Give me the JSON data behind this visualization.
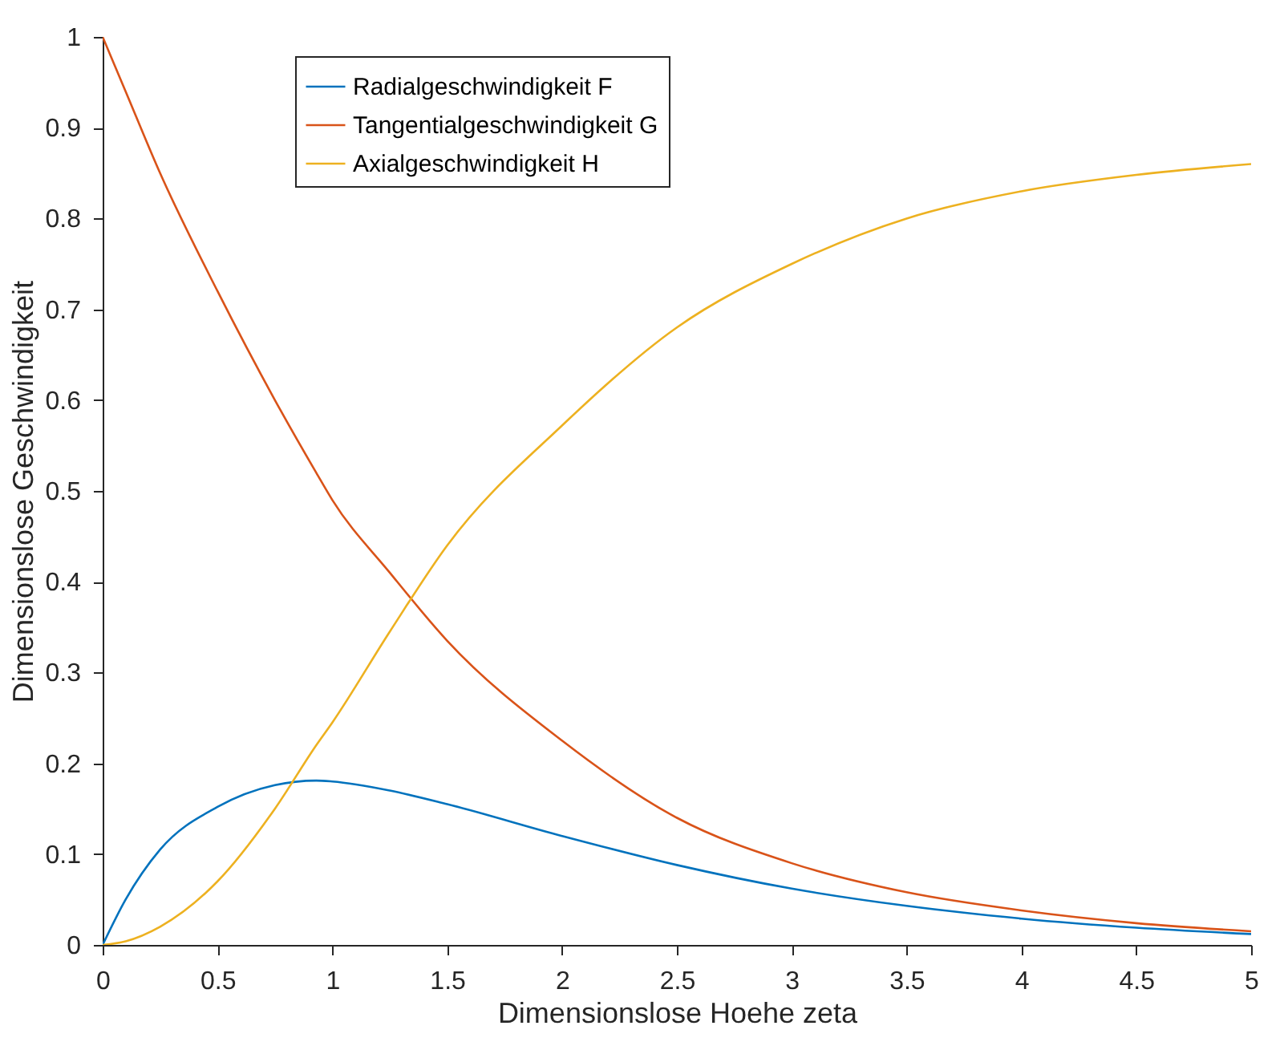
{
  "chart_data": {
    "type": "line",
    "xlabel": "Dimensionslose Hoehe zeta",
    "ylabel": "Dimensionslose Geschwindigkeit",
    "xlim": [
      0,
      5
    ],
    "ylim": [
      0,
      1
    ],
    "xticks": [
      0,
      0.5,
      1,
      1.5,
      2,
      2.5,
      3,
      3.5,
      4,
      4.5,
      5
    ],
    "yticks": [
      0,
      0.1,
      0.2,
      0.3,
      0.4,
      0.5,
      0.6,
      0.7,
      0.8,
      0.9,
      1
    ],
    "x": [
      0,
      0.1,
      0.25,
      0.5,
      0.75,
      0.93,
      1,
      1.25,
      1.5,
      2,
      2.5,
      3,
      3.5,
      4,
      4.5,
      5
    ],
    "series": [
      {
        "name": "Radialgeschwindigkeit F",
        "color": "#0072bd",
        "values": [
          0,
          0.05,
          0.105,
          0.152,
          0.176,
          0.181,
          0.18,
          0.17,
          0.155,
          0.12,
          0.088,
          0.062,
          0.043,
          0.029,
          0.019,
          0.012
        ]
      },
      {
        "name": "Tangentialgeschwindigkeit G",
        "color": "#d95319",
        "values": [
          1,
          0.94,
          0.85,
          0.72,
          0.6,
          0.52,
          0.49,
          0.41,
          0.335,
          0.225,
          0.14,
          0.09,
          0.058,
          0.038,
          0.024,
          0.015
        ]
      },
      {
        "name": "Axialgeschwindigkeit H",
        "color": "#edb120",
        "values": [
          0,
          0.004,
          0.02,
          0.07,
          0.15,
          0.22,
          0.245,
          0.345,
          0.44,
          0.572,
          0.68,
          0.75,
          0.8,
          0.83,
          0.848,
          0.86
        ]
      }
    ],
    "legend": "top left",
    "grid": false,
    "marker": "none",
    "line_style": "solid"
  }
}
